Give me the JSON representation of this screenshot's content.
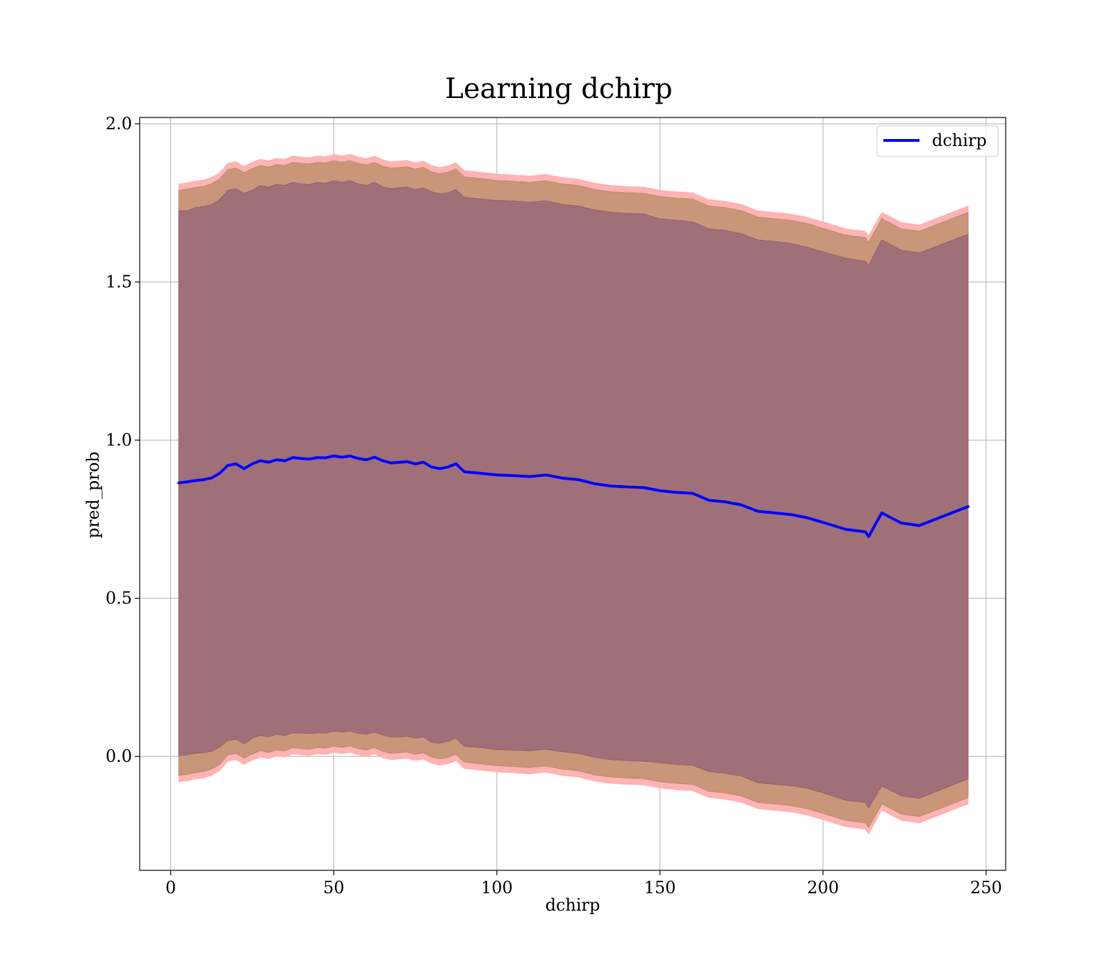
{
  "chart_data": {
    "type": "line",
    "title": "Learning dchirp",
    "xlabel": "dchirp",
    "ylabel": "pred_prob",
    "xlim": [
      -9.5,
      256
    ],
    "ylim": [
      -0.36,
      2.02
    ],
    "xticks": [
      0,
      50,
      100,
      150,
      200,
      250
    ],
    "xtick_labels": [
      "0",
      "50",
      "100",
      "150",
      "200",
      "250"
    ],
    "yticks": [
      0.0,
      0.5,
      1.0,
      1.5,
      2.0
    ],
    "ytick_labels": [
      "0.0",
      "0.5",
      "1.0",
      "1.5",
      "2.0"
    ],
    "grid": true,
    "legend": {
      "location": "upper right",
      "entries": [
        "dchirp"
      ]
    },
    "colors": {
      "line": "#0000ff",
      "band_outer": "#ffb3b3",
      "band_middle": "#c9967a",
      "band_inner": "#a07079"
    },
    "series": [
      {
        "name": "dchirp",
        "x": [
          2.5,
          5,
          7.5,
          10,
          12.5,
          15,
          17.5,
          20,
          22.5,
          25,
          27.5,
          30,
          32.5,
          35,
          37.5,
          40,
          42.5,
          45,
          47.5,
          50,
          52.5,
          55,
          57.5,
          60,
          62.5,
          65,
          67.5,
          70,
          72.5,
          75,
          77.5,
          80,
          82.5,
          85,
          87.5,
          90,
          95,
          100,
          105,
          110,
          115,
          120,
          125,
          130,
          135,
          140,
          145,
          150,
          155,
          160,
          165,
          170,
          175,
          180,
          185,
          190,
          195,
          200,
          207,
          213,
          214,
          218,
          224,
          229.5,
          244.5
        ],
        "y": [
          0.865,
          0.868,
          0.872,
          0.875,
          0.88,
          0.895,
          0.92,
          0.925,
          0.91,
          0.925,
          0.935,
          0.93,
          0.938,
          0.935,
          0.945,
          0.942,
          0.94,
          0.945,
          0.944,
          0.95,
          0.946,
          0.95,
          0.942,
          0.938,
          0.946,
          0.935,
          0.928,
          0.93,
          0.932,
          0.925,
          0.93,
          0.915,
          0.91,
          0.915,
          0.925,
          0.9,
          0.895,
          0.89,
          0.888,
          0.885,
          0.89,
          0.88,
          0.875,
          0.862,
          0.855,
          0.852,
          0.85,
          0.84,
          0.835,
          0.832,
          0.81,
          0.805,
          0.795,
          0.775,
          0.77,
          0.765,
          0.755,
          0.74,
          0.718,
          0.71,
          0.695,
          0.77,
          0.738,
          0.73,
          0.79
        ],
        "band_inner_upper": [
          1.725,
          1.725,
          1.735,
          1.738,
          1.745,
          1.76,
          1.79,
          1.795,
          1.78,
          1.79,
          1.805,
          1.8,
          1.808,
          1.805,
          1.815,
          1.81,
          1.808,
          1.815,
          1.812,
          1.82,
          1.815,
          1.82,
          1.81,
          1.805,
          1.815,
          1.8,
          1.795,
          1.798,
          1.8,
          1.792,
          1.798,
          1.785,
          1.778,
          1.782,
          1.792,
          1.768,
          1.762,
          1.758,
          1.756,
          1.752,
          1.757,
          1.745,
          1.74,
          1.728,
          1.72,
          1.717,
          1.715,
          1.7,
          1.695,
          1.69,
          1.668,
          1.663,
          1.652,
          1.633,
          1.628,
          1.622,
          1.61,
          1.595,
          1.575,
          1.565,
          1.553,
          1.633,
          1.6,
          1.592,
          1.651
        ],
        "band_inner_lower": [
          0.003,
          0.005,
          0.01,
          0.012,
          0.016,
          0.03,
          0.05,
          0.055,
          0.04,
          0.058,
          0.066,
          0.062,
          0.07,
          0.066,
          0.075,
          0.074,
          0.072,
          0.075,
          0.074,
          0.08,
          0.077,
          0.08,
          0.073,
          0.07,
          0.077,
          0.068,
          0.061,
          0.062,
          0.064,
          0.058,
          0.062,
          0.045,
          0.042,
          0.048,
          0.058,
          0.032,
          0.028,
          0.022,
          0.02,
          0.018,
          0.023,
          0.015,
          0.01,
          -0.003,
          -0.01,
          -0.013,
          -0.015,
          -0.02,
          -0.025,
          -0.028,
          -0.048,
          -0.053,
          -0.062,
          -0.083,
          -0.088,
          -0.092,
          -0.1,
          -0.115,
          -0.139,
          -0.145,
          -0.163,
          -0.093,
          -0.124,
          -0.132,
          -0.071
        ],
        "band_middle_upper": [
          1.79,
          1.793,
          1.799,
          1.802,
          1.81,
          1.825,
          1.855,
          1.86,
          1.845,
          1.858,
          1.868,
          1.863,
          1.871,
          1.868,
          1.878,
          1.875,
          1.873,
          1.878,
          1.876,
          1.883,
          1.879,
          1.883,
          1.875,
          1.87,
          1.878,
          1.866,
          1.86,
          1.862,
          1.864,
          1.857,
          1.862,
          1.848,
          1.842,
          1.847,
          1.857,
          1.832,
          1.827,
          1.821,
          1.818,
          1.815,
          1.82,
          1.81,
          1.805,
          1.792,
          1.785,
          1.782,
          1.78,
          1.77,
          1.765,
          1.762,
          1.74,
          1.735,
          1.725,
          1.705,
          1.7,
          1.695,
          1.685,
          1.67,
          1.648,
          1.64,
          1.625,
          1.7,
          1.668,
          1.66,
          1.72
        ],
        "band_middle_lower": [
          -0.06,
          -0.057,
          -0.051,
          -0.048,
          -0.04,
          -0.025,
          0.005,
          0.01,
          -0.005,
          0.008,
          0.018,
          0.013,
          0.021,
          0.018,
          0.028,
          0.025,
          0.023,
          0.028,
          0.026,
          0.033,
          0.029,
          0.033,
          0.025,
          0.02,
          0.028,
          0.016,
          0.01,
          0.012,
          0.014,
          0.007,
          0.012,
          -0.002,
          -0.008,
          -0.003,
          0.007,
          -0.018,
          -0.023,
          -0.029,
          -0.032,
          -0.035,
          -0.03,
          -0.04,
          -0.045,
          -0.058,
          -0.065,
          -0.068,
          -0.07,
          -0.08,
          -0.085,
          -0.088,
          -0.11,
          -0.115,
          -0.125,
          -0.145,
          -0.15,
          -0.155,
          -0.165,
          -0.18,
          -0.202,
          -0.21,
          -0.225,
          -0.15,
          -0.182,
          -0.19,
          -0.13
        ],
        "band_outer_upper": [
          1.81,
          1.813,
          1.819,
          1.822,
          1.83,
          1.845,
          1.875,
          1.88,
          1.865,
          1.878,
          1.888,
          1.883,
          1.891,
          1.888,
          1.898,
          1.895,
          1.893,
          1.898,
          1.896,
          1.903,
          1.899,
          1.903,
          1.895,
          1.89,
          1.898,
          1.886,
          1.88,
          1.882,
          1.884,
          1.877,
          1.882,
          1.868,
          1.862,
          1.867,
          1.877,
          1.852,
          1.847,
          1.841,
          1.838,
          1.835,
          1.84,
          1.83,
          1.825,
          1.812,
          1.805,
          1.802,
          1.8,
          1.79,
          1.785,
          1.782,
          1.76,
          1.755,
          1.745,
          1.725,
          1.72,
          1.715,
          1.705,
          1.69,
          1.668,
          1.66,
          1.645,
          1.72,
          1.688,
          1.68,
          1.74
        ],
        "band_outer_lower": [
          -0.08,
          -0.077,
          -0.071,
          -0.068,
          -0.06,
          -0.045,
          -0.015,
          -0.01,
          -0.025,
          -0.012,
          -0.002,
          -0.007,
          0.001,
          -0.002,
          0.008,
          0.005,
          0.003,
          0.008,
          0.006,
          0.013,
          0.009,
          0.013,
          0.005,
          0.0,
          0.008,
          -0.004,
          -0.01,
          -0.008,
          -0.006,
          -0.013,
          -0.008,
          -0.022,
          -0.028,
          -0.023,
          -0.013,
          -0.038,
          -0.043,
          -0.049,
          -0.052,
          -0.055,
          -0.05,
          -0.06,
          -0.065,
          -0.078,
          -0.085,
          -0.088,
          -0.09,
          -0.1,
          -0.105,
          -0.108,
          -0.13,
          -0.135,
          -0.145,
          -0.165,
          -0.17,
          -0.175,
          -0.185,
          -0.2,
          -0.222,
          -0.23,
          -0.245,
          -0.17,
          -0.202,
          -0.21,
          -0.15
        ]
      }
    ]
  }
}
